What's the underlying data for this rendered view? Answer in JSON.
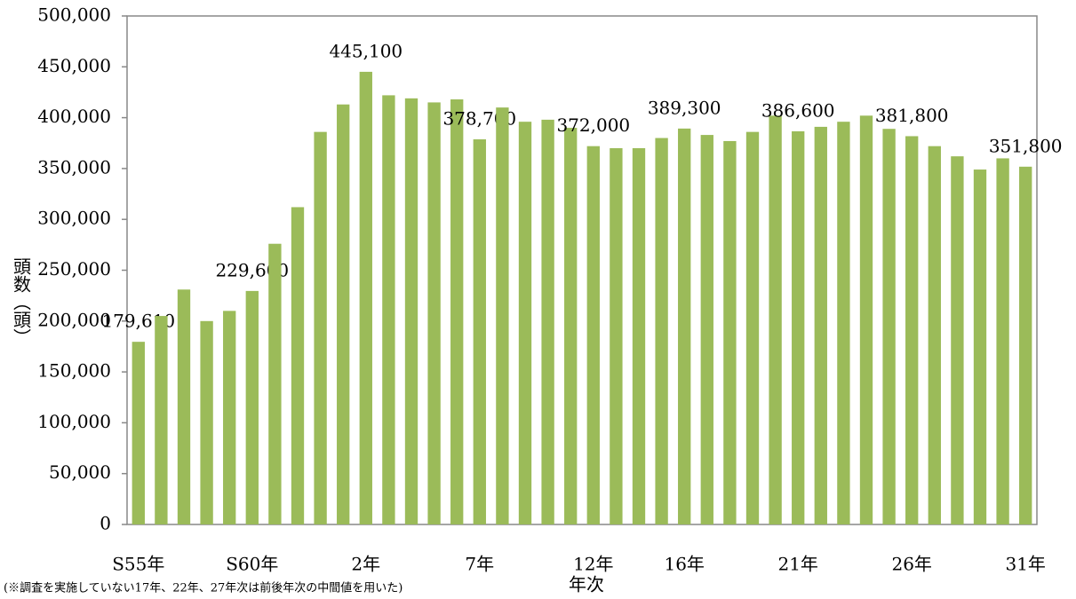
{
  "chart_data": {
    "type": "bar",
    "y_label": "頭数（頭）",
    "x_label": "年次",
    "note": "(※調査を実施していない17年、22年、27年次は前後年次の中間値を用いた)",
    "categories": [
      "S55年",
      null,
      null,
      null,
      null,
      "S60年",
      null,
      null,
      null,
      null,
      "2年",
      null,
      null,
      null,
      null,
      "7年",
      null,
      null,
      null,
      null,
      "12年",
      null,
      null,
      null,
      "16年",
      null,
      null,
      null,
      null,
      "21年",
      null,
      null,
      null,
      null,
      "26年",
      null,
      null,
      null,
      null,
      "31年"
    ],
    "values": [
      179610,
      205000,
      231000,
      200000,
      210000,
      229600,
      276000,
      312000,
      386000,
      413000,
      445100,
      422000,
      419000,
      415000,
      418000,
      378700,
      410000,
      396000,
      398000,
      390000,
      372000,
      370000,
      370000,
      380000,
      389300,
      383000,
      377000,
      386000,
      402000,
      386600,
      391000,
      396000,
      402000,
      389000,
      381800,
      372000,
      362000,
      349000,
      360000,
      351800
    ],
    "value_labels": [
      "179,610",
      null,
      null,
      null,
      null,
      "229,600",
      null,
      null,
      null,
      null,
      "445,100",
      null,
      null,
      null,
      null,
      "378,700",
      null,
      null,
      null,
      null,
      "372,000",
      null,
      null,
      null,
      "389,300",
      null,
      null,
      null,
      null,
      "386,600",
      null,
      null,
      null,
      null,
      "381,800",
      null,
      null,
      null,
      null,
      "351,800"
    ],
    "color": "#9bbb59",
    "ylim": [
      0,
      500000
    ],
    "yticks": [
      0,
      {
        "value": 50000,
        "label": "50,000"
      },
      {
        "value": 100000,
        "label": "100,000"
      },
      {
        "value": 150000,
        "label": "150,000"
      },
      {
        "value": 200000,
        "label": "200,000"
      },
      {
        "value": 250000,
        "label": "250,000"
      },
      {
        "value": 300000,
        "label": "300,000"
      },
      {
        "value": 350000,
        "label": "350,000"
      },
      {
        "value": 400000,
        "label": "400,000"
      },
      {
        "value": 450000,
        "label": "450,000"
      },
      {
        "value": 500000,
        "label": "500,000"
      }
    ],
    "grid": false
  }
}
